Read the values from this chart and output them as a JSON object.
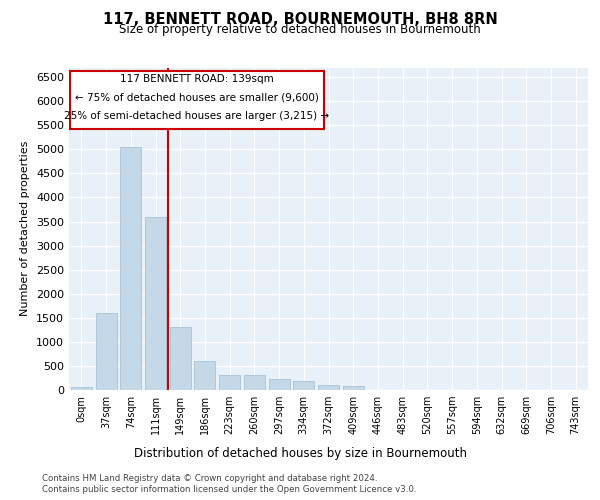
{
  "title": "117, BENNETT ROAD, BOURNEMOUTH, BH8 8RN",
  "subtitle": "Size of property relative to detached houses in Bournemouth",
  "xlabel": "Distribution of detached houses by size in Bournemouth",
  "ylabel": "Number of detached properties",
  "bar_color": "#c5d8e8",
  "bar_edge_color": "#a0bcd0",
  "background_color": "#e8f0f8",
  "grid_color": "#ffffff",
  "annotation_box_color": "#cc0000",
  "vline_color": "#cc0000",
  "annotation_text_line1": "117 BENNETT ROAD: 139sqm",
  "annotation_text_line2": "← 75% of detached houses are smaller (9,600)",
  "annotation_text_line3": "25% of semi-detached houses are larger (3,215) →",
  "categories": [
    "0sqm",
    "37sqm",
    "74sqm",
    "111sqm",
    "149sqm",
    "186sqm",
    "223sqm",
    "260sqm",
    "297sqm",
    "334sqm",
    "372sqm",
    "409sqm",
    "446sqm",
    "483sqm",
    "520sqm",
    "557sqm",
    "594sqm",
    "632sqm",
    "669sqm",
    "706sqm",
    "743sqm"
  ],
  "bar_heights": [
    55,
    1600,
    5050,
    3600,
    1300,
    600,
    320,
    310,
    230,
    190,
    100,
    90,
    0,
    0,
    0,
    0,
    0,
    0,
    0,
    0,
    0
  ],
  "ylim": [
    0,
    6700
  ],
  "yticks": [
    0,
    500,
    1000,
    1500,
    2000,
    2500,
    3000,
    3500,
    4000,
    4500,
    5000,
    5500,
    6000,
    6500
  ],
  "footer_line1": "Contains HM Land Registry data © Crown copyright and database right 2024.",
  "footer_line2": "Contains public sector information licensed under the Open Government Licence v3.0."
}
